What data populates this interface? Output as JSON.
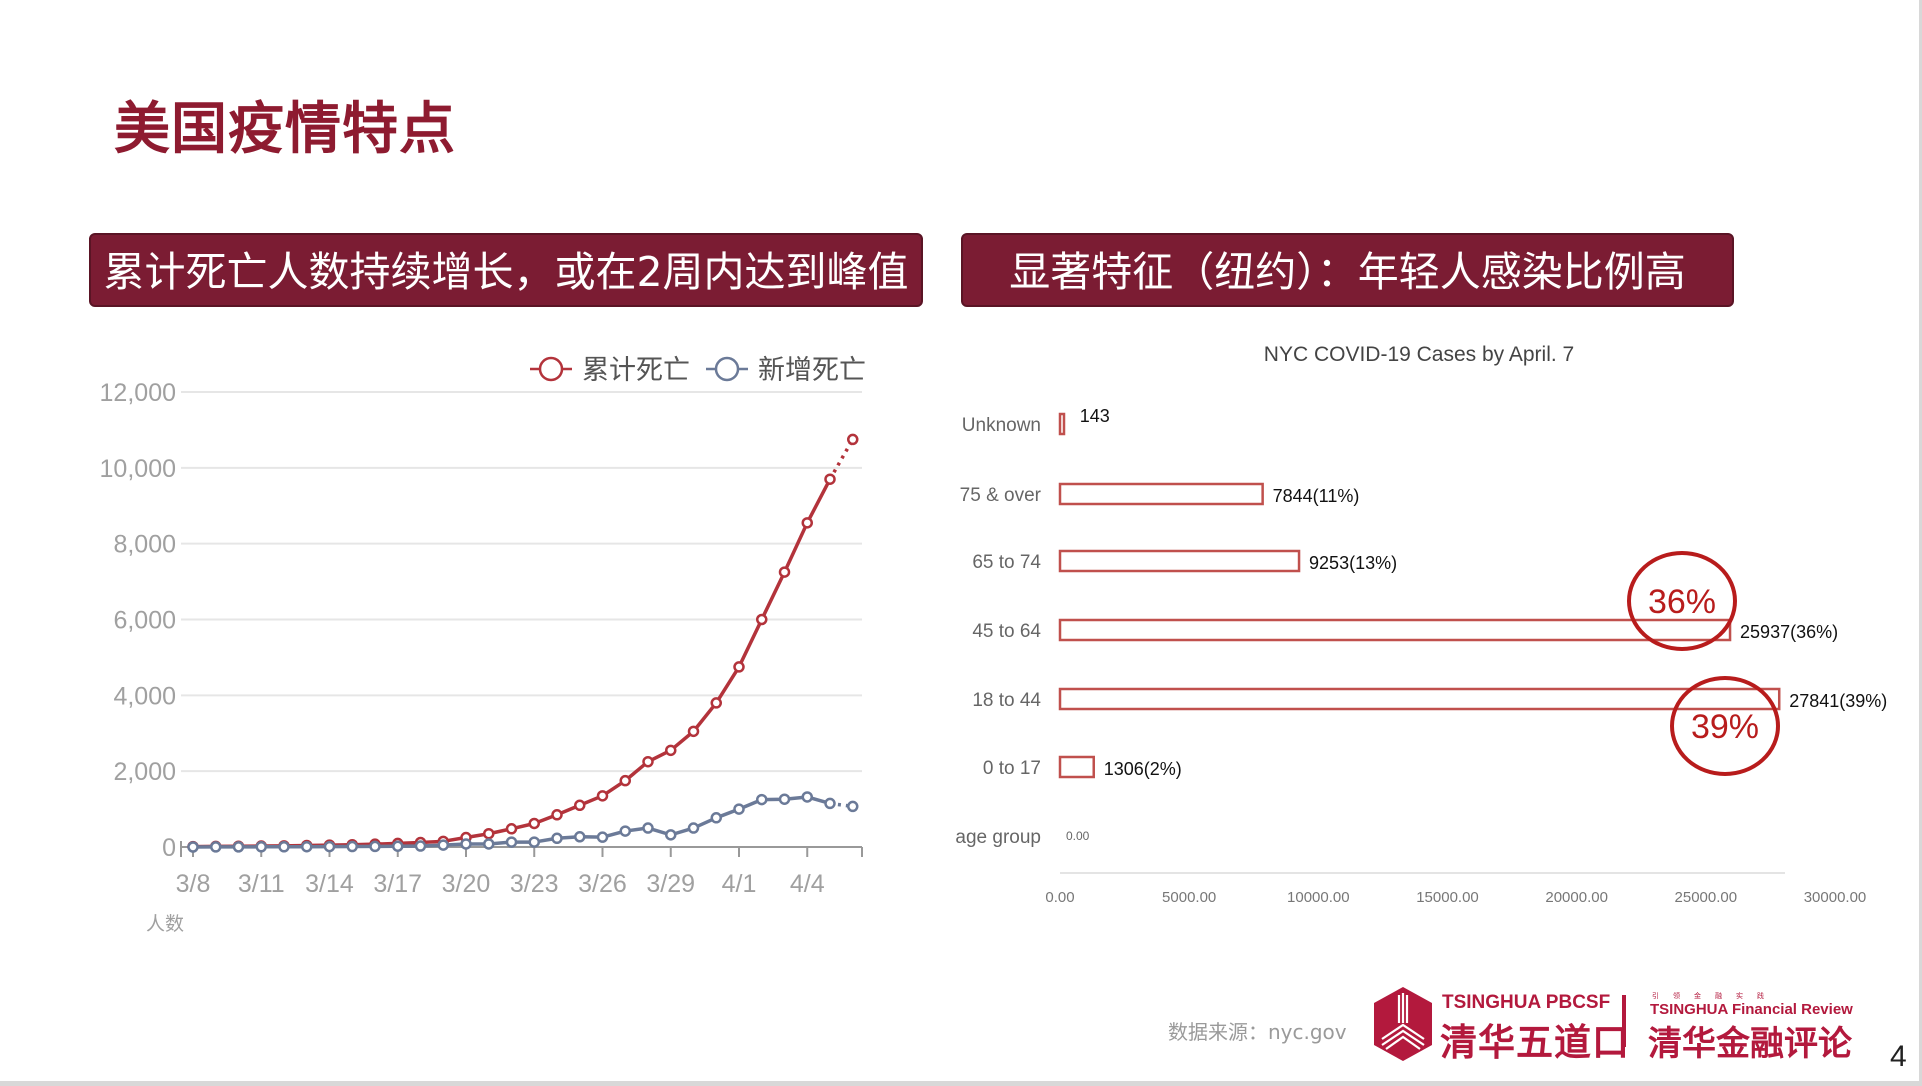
{
  "page": {
    "title": "美国疫情特点",
    "page_number": "4",
    "source": "数据来源：nyc.gov"
  },
  "banners": {
    "left": "累计死亡人数持续增长，或在2周内达到峰值",
    "right": "显著特征（纽约）：年轻人感染比例高"
  },
  "logos": {
    "pbcsf_en": "TSINGHUA PBCSF",
    "pbcsf_cn": "清华五道口",
    "review_tagline": "引领金融实践",
    "review_en": "TSINGHUA Financial Review",
    "review_cn": "清华金融评论"
  },
  "colors": {
    "accent": "#8e1b30",
    "banner": "#7b1c33",
    "cumulative": "#b3333b",
    "daily": "#6b7a98",
    "bar": "#c0504d",
    "circle": "#b81c1c"
  },
  "chart_data": [
    {
      "type": "line",
      "title": "",
      "ylabel": "人数",
      "ylim": [
        0,
        12000
      ],
      "yticks": [
        "0",
        "2,000",
        "4,000",
        "6,000",
        "8,000",
        "10,000",
        "12,000"
      ],
      "yticks_values": [
        0,
        2000,
        4000,
        6000,
        8000,
        10000,
        12000
      ],
      "xtick_labels": [
        "3/8",
        "3/11",
        "3/14",
        "3/17",
        "3/20",
        "3/23",
        "3/26",
        "3/29",
        "4/1",
        "4/4"
      ],
      "x": [
        "3/8",
        "3/9",
        "3/10",
        "3/11",
        "3/12",
        "3/13",
        "3/14",
        "3/15",
        "3/16",
        "3/17",
        "3/18",
        "3/19",
        "3/20",
        "3/21",
        "3/22",
        "3/23",
        "3/24",
        "3/25",
        "3/26",
        "3/27",
        "3/28",
        "3/29",
        "3/30",
        "3/31",
        "4/1",
        "4/2",
        "4/3",
        "4/4",
        "4/5",
        "4/6"
      ],
      "grid": true,
      "legend": "top-right",
      "series": [
        {
          "name": "累计死亡",
          "values": [
            10,
            15,
            20,
            25,
            30,
            40,
            50,
            60,
            75,
            95,
            120,
            150,
            250,
            350,
            480,
            620,
            850,
            1100,
            1350,
            1750,
            2250,
            2550,
            3050,
            3800,
            4750,
            6000,
            7250,
            8550,
            9700,
            10750
          ]
        },
        {
          "name": "新增死亡",
          "values": [
            0,
            2,
            3,
            5,
            5,
            8,
            10,
            12,
            15,
            20,
            25,
            50,
            80,
            80,
            130,
            130,
            230,
            270,
            260,
            420,
            500,
            320,
            500,
            770,
            1000,
            1250,
            1260,
            1320,
            1150,
            1070
          ]
        }
      ],
      "projected_last_point": true
    },
    {
      "type": "bar",
      "orientation": "horizontal",
      "title": "NYC COVID-19 Cases by April. 7",
      "categories": [
        "Unknown",
        "75  & over",
        "65 to 74",
        "45 to 64",
        "18 to 44",
        "0 to 17",
        "age group"
      ],
      "values": [
        143,
        7844,
        9253,
        25937,
        27841,
        1306,
        0
      ],
      "data_labels": [
        "143",
        "7844(11%)",
        "9253(13%)",
        "25937(36%)",
        "27841(39%)",
        "1306(2%)",
        "0.00"
      ],
      "xlim": [
        0,
        30000
      ],
      "xticks": [
        "0.00",
        "5000.00",
        "10000.00",
        "15000.00",
        "20000.00",
        "25000.00",
        "30000.00"
      ],
      "xticks_values": [
        0,
        5000,
        10000,
        15000,
        20000,
        25000,
        30000
      ],
      "annotations": [
        {
          "text": "36%",
          "category": "45 to 64",
          "position": "above"
        },
        {
          "text": "39%",
          "category": "18 to 44",
          "position": "below"
        }
      ]
    }
  ]
}
